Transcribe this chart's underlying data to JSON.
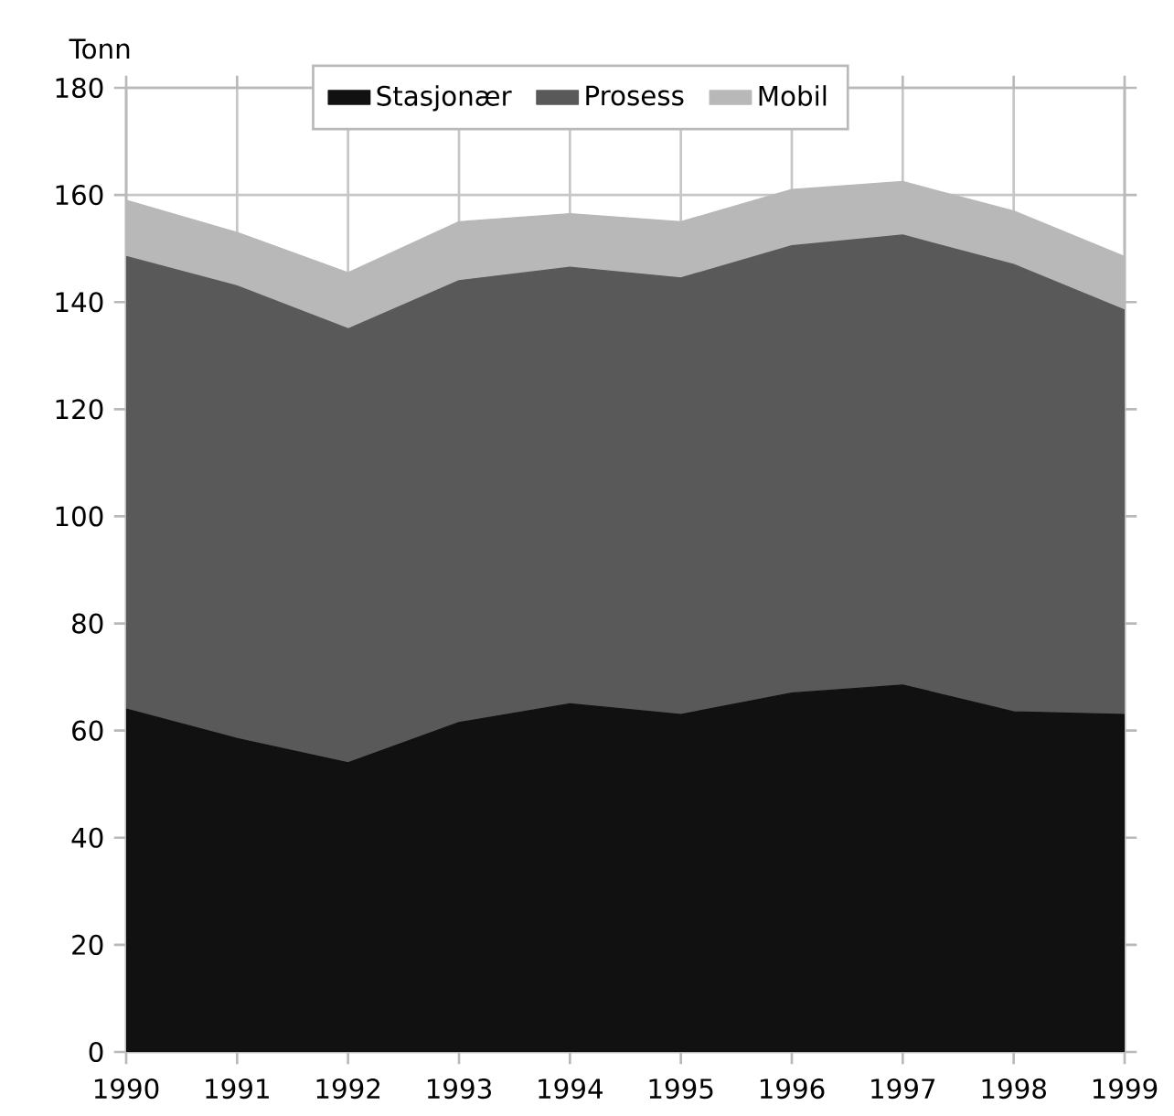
{
  "chart_data": {
    "type": "area",
    "stacked": true,
    "ylabel": "Tonn",
    "x": [
      1990,
      1991,
      1992,
      1993,
      1994,
      1995,
      1996,
      1997,
      1998,
      1999
    ],
    "xlim": [
      1990,
      1999
    ],
    "xticks": [
      1990,
      1991,
      1992,
      1993,
      1994,
      1995,
      1996,
      1997,
      1998,
      1999
    ],
    "ylim": [
      0,
      180
    ],
    "yticks": [
      0,
      20,
      40,
      60,
      80,
      100,
      120,
      140,
      160,
      180
    ],
    "grid": true,
    "legend": "top",
    "series": [
      {
        "name": "Stasjonær",
        "color": "#111111",
        "values": [
          64,
          58.5,
          54,
          61.5,
          65,
          63,
          67,
          68.5,
          63.5,
          63
        ]
      },
      {
        "name": "Prosess",
        "color": "#595959",
        "values": [
          84.5,
          84.5,
          81,
          82.5,
          81.5,
          81.5,
          83.5,
          84,
          83.5,
          75.5
        ]
      },
      {
        "name": "Mobil",
        "color": "#b8b8b8",
        "values": [
          10.5,
          10,
          10.5,
          11,
          10,
          10.5,
          10.5,
          10,
          10,
          10
        ]
      }
    ]
  }
}
